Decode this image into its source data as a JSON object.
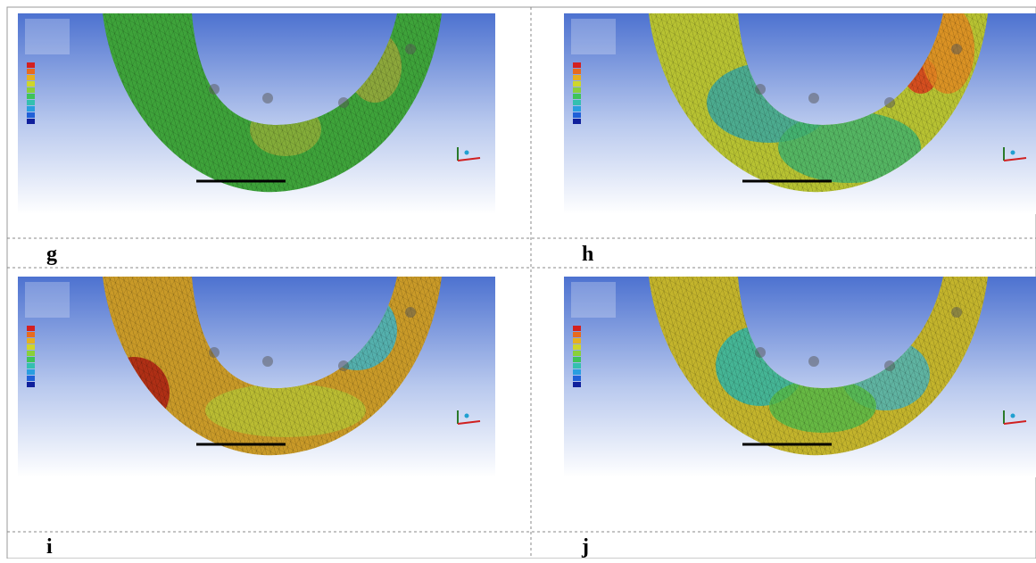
{
  "panels": [
    {
      "label": "g"
    },
    {
      "label": "h"
    },
    {
      "label": "i"
    },
    {
      "label": "j"
    }
  ]
}
